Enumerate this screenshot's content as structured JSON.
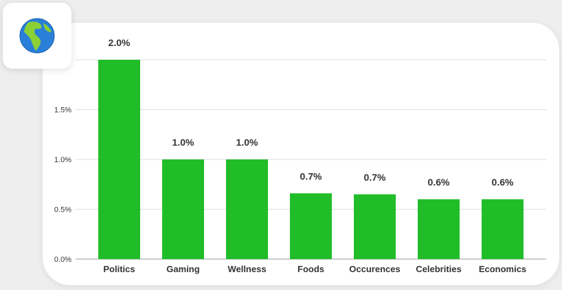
{
  "colors": {
    "bar": "#21bd29",
    "grid": "#dddddd",
    "axis": "#999999",
    "text": "#333333"
  },
  "icon": {
    "name": "globe-americas-icon"
  },
  "chart_data": {
    "type": "bar",
    "categories": [
      "Politics",
      "Gaming",
      "Wellness",
      "Foods",
      "Occurences",
      "Celebrities",
      "Economics"
    ],
    "values": [
      2.0,
      1.0,
      1.0,
      0.66,
      0.65,
      0.6,
      0.6
    ],
    "data_labels": [
      "2.0%",
      "1.0%",
      "1.0%",
      "0.7%",
      "0.7%",
      "0.6%",
      "0.6%"
    ],
    "yticks": [
      0,
      0.5,
      1.0,
      1.5
    ],
    "ytick_labels": [
      "0.0%",
      "0.5%",
      "1.0%",
      "1.5%"
    ],
    "ylim": [
      0,
      2.0
    ],
    "grid": true,
    "legend": "none"
  }
}
